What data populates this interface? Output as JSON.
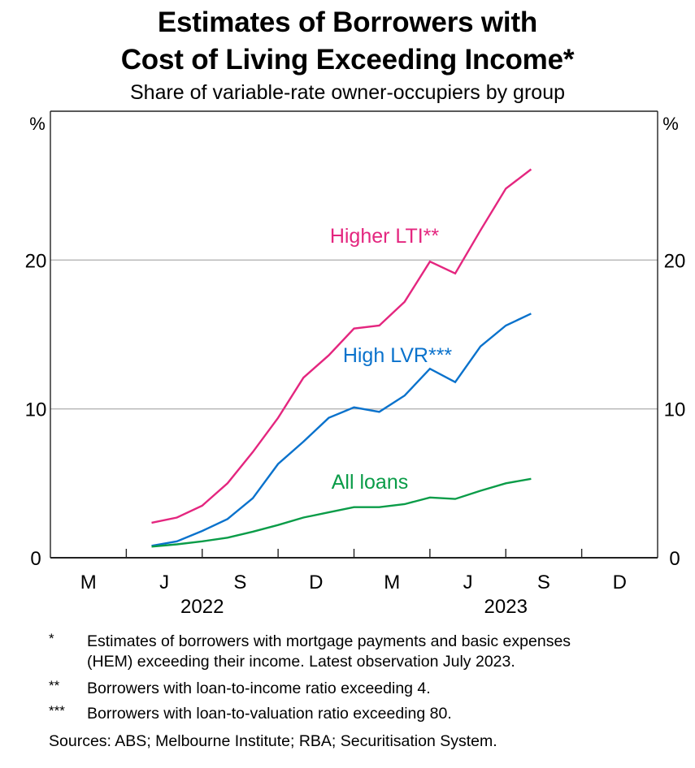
{
  "title_line1": "Estimates of Borrowers with",
  "title_line2": "Cost of Living Exceeding Income*",
  "subtitle": "Share of variable-rate owner-occupiers by group",
  "chart_data": {
    "type": "line",
    "title": "Estimates of Borrowers with Cost of Living Exceeding Income*",
    "subtitle": "Share of variable-rate owner-occupiers by group",
    "xlabel": "",
    "ylabel_left": "%",
    "ylabel_right": "%",
    "ylim": [
      0,
      30
    ],
    "yticks": [
      0,
      10,
      20
    ],
    "grid": true,
    "x_range": [
      "2022-01",
      "2023-12"
    ],
    "x_tick_labels": [
      {
        "label": "M",
        "quarter": "2022-Q1"
      },
      {
        "label": "J",
        "quarter": "2022-Q2"
      },
      {
        "label": "S",
        "quarter": "2022-Q3"
      },
      {
        "label": "D",
        "quarter": "2022-Q4"
      },
      {
        "label": "M",
        "quarter": "2023-Q1"
      },
      {
        "label": "J",
        "quarter": "2023-Q2"
      },
      {
        "label": "S",
        "quarter": "2023-Q3"
      },
      {
        "label": "D",
        "quarter": "2023-Q4"
      }
    ],
    "year_labels": [
      {
        "label": "2022",
        "year": 2022
      },
      {
        "label": "2023",
        "year": 2023
      }
    ],
    "x": [
      "2022-04",
      "2022-05",
      "2022-06",
      "2022-07",
      "2022-08",
      "2022-09",
      "2022-10",
      "2022-11",
      "2022-12",
      "2023-01",
      "2023-02",
      "2023-03",
      "2023-04",
      "2023-05",
      "2023-06",
      "2023-07"
    ],
    "series": [
      {
        "name": "Higher LTI**",
        "color": "#E4267F",
        "values": [
          2.35,
          2.7,
          3.5,
          5.0,
          7.1,
          9.4,
          12.1,
          13.6,
          15.4,
          15.6,
          17.2,
          19.9,
          19.1,
          22.0,
          24.8,
          26.1
        ]
      },
      {
        "name": "High LVR***",
        "color": "#0A72CC",
        "values": [
          0.8,
          1.1,
          1.8,
          2.6,
          4.0,
          6.3,
          7.8,
          9.4,
          10.1,
          9.8,
          10.9,
          12.7,
          11.8,
          14.2,
          15.6,
          16.4
        ]
      },
      {
        "name": "All loans",
        "color": "#0A9C48",
        "values": [
          0.75,
          0.9,
          1.1,
          1.35,
          1.75,
          2.2,
          2.7,
          3.05,
          3.4,
          3.4,
          3.6,
          4.05,
          3.95,
          4.5,
          5.0,
          5.3
        ]
      }
    ],
    "annotations": [
      "Higher LTI**",
      "High LVR***",
      "All loans"
    ],
    "legend": "inline labels"
  },
  "footnotes": [
    {
      "mark": "*",
      "text_line1": "Estimates of borrowers with mortgage payments and basic expenses",
      "text_line2": "(HEM) exceeding their income. Latest observation July 2023."
    },
    {
      "mark": "**",
      "text_line1": "Borrowers with loan-to-income ratio exceeding 4."
    },
    {
      "mark": "***",
      "text_line1": "Borrowers with loan-to-valuation ratio exceeding 80."
    }
  ],
  "sources": "Sources: ABS; Melbourne Institute; RBA; Securitisation System."
}
